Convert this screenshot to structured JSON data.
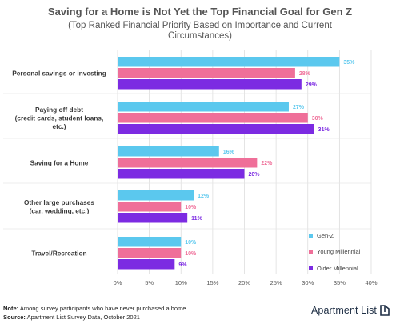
{
  "colors": {
    "gen_z": "#5bc8ee",
    "young_millennial": "#ef6f99",
    "older_millennial": "#7c2be2",
    "gridline": "#dddddd",
    "text": "#555555",
    "brand": "#1f2f45"
  },
  "chart_data": {
    "type": "bar",
    "orientation": "horizontal",
    "title": "Saving for a Home is Not Yet the Top Financial Goal for Gen Z",
    "subtitle": "(Top Ranked Financial Priority Based on Importance and Current Circumstances)",
    "categories": [
      [
        "Personal savings or investing"
      ],
      [
        "Paying off debt",
        "(credit cards, student loans,",
        "etc.)"
      ],
      [
        "Saving for a Home"
      ],
      [
        "Other large purchases",
        "(car, wedding, etc.)"
      ],
      [
        "Travel/Recreation"
      ]
    ],
    "series": [
      {
        "name": "Gen-Z",
        "color_key": "gen_z",
        "values": [
          35,
          27,
          16,
          12,
          10
        ],
        "labels": [
          "35%",
          "27%",
          "16%",
          "12%",
          "10%"
        ]
      },
      {
        "name": "Young Millennial",
        "color_key": "young_millennial",
        "values": [
          28,
          30,
          22,
          10,
          10
        ],
        "labels": [
          "28%",
          "30%",
          "22%",
          "10%",
          "10%"
        ]
      },
      {
        "name": "Older Millennial",
        "color_key": "older_millennial",
        "values": [
          29,
          31,
          20,
          11,
          9
        ],
        "labels": [
          "29%",
          "31%",
          "20%",
          "11%",
          "9%"
        ]
      }
    ],
    "xlim": [
      0,
      40
    ],
    "xticks": [
      0,
      5,
      10,
      15,
      20,
      25,
      30,
      35,
      40
    ],
    "xtick_labels": [
      "0%",
      "5%",
      "10%",
      "15%",
      "20%",
      "25%",
      "30%",
      "35%",
      "40%"
    ],
    "xlabel": "",
    "ylabel": "",
    "grid": "vertical",
    "legend_position": "bottom-right"
  },
  "footer": {
    "note_label": "Note:",
    "note_text": " Among survey participants who have never purchased a home",
    "source_label": "Source:",
    "source_text": " Apartment List Survey Data, October 2021"
  },
  "brand": {
    "name": "Apartment List",
    "icon": "apartment-list-logo-icon"
  }
}
